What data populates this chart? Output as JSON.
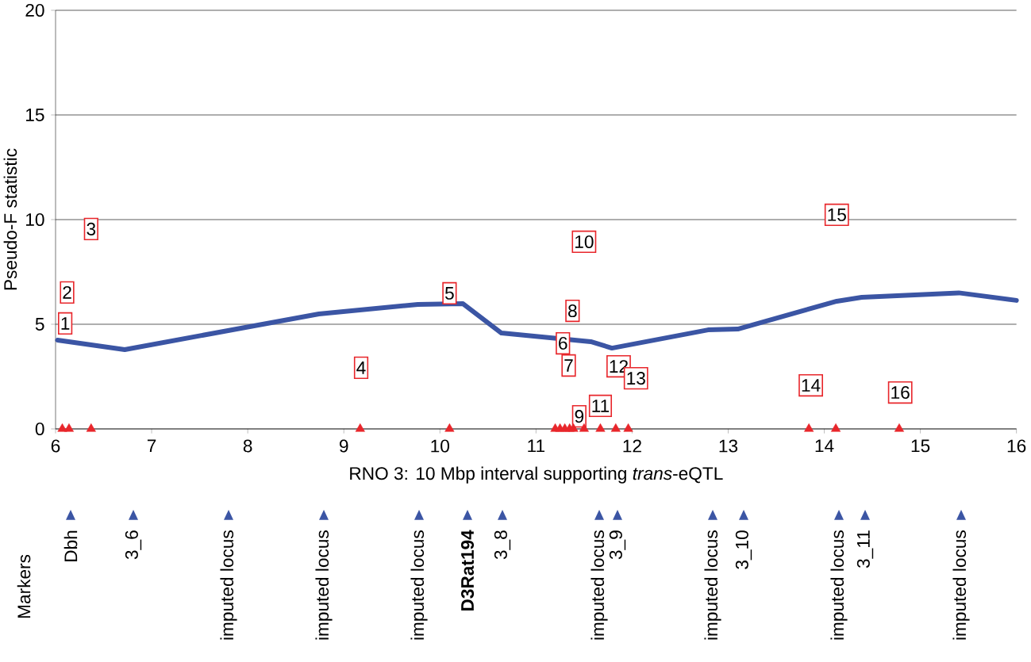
{
  "chart_data": {
    "type": "line",
    "xlabel": "RNO 3: 10 Mbp interval supporting *trans*-eQTL",
    "ylabel": "Pseudo-F statistic",
    "xlim": [
      6,
      16
    ],
    "xticks": [
      6,
      7,
      8,
      9,
      10,
      11,
      12,
      13,
      14,
      15,
      16
    ],
    "ylim": [
      0,
      20
    ],
    "yticks": [
      0,
      5,
      10,
      15,
      20
    ],
    "grid": "y",
    "series": [
      {
        "color": "#3b55a4",
        "x": [
          6.02,
          6.72,
          8.74,
          9.77,
          10.24,
          10.64,
          11.57,
          11.79,
          12.79,
          13.1,
          14.13,
          14.39,
          15.4,
          16.0
        ],
        "values": [
          4.24,
          3.79,
          5.49,
          5.95,
          5.98,
          4.58,
          4.17,
          3.86,
          4.73,
          4.77,
          6.1,
          6.29,
          6.5,
          6.14
        ]
      },
      {
        "type": "scatter",
        "marker": "triangle",
        "color": "#e8262b",
        "x": [
          6.07,
          6.14,
          6.37,
          9.17,
          10.1,
          11.2,
          11.25,
          11.3,
          11.35,
          11.39,
          11.5,
          11.67,
          11.83,
          11.96,
          13.84,
          14.12,
          14.78
        ],
        "values": [
          0,
          0,
          0,
          0,
          0,
          0,
          0,
          0,
          0,
          0,
          0,
          0,
          0,
          0,
          0,
          0,
          0
        ]
      }
    ],
    "annotations": [
      {
        "text": "1",
        "x": 6.1,
        "y": 5.04
      },
      {
        "text": "2",
        "x": 6.12,
        "y": 6.52
      },
      {
        "text": "3",
        "x": 6.37,
        "y": 9.55
      },
      {
        "text": "4",
        "x": 9.18,
        "y": 2.92
      },
      {
        "text": "5",
        "x": 10.1,
        "y": 6.48
      },
      {
        "text": "6",
        "x": 11.28,
        "y": 4.09
      },
      {
        "text": "7",
        "x": 11.34,
        "y": 3.03
      },
      {
        "text": "8",
        "x": 11.38,
        "y": 5.64
      },
      {
        "text": "9",
        "x": 11.45,
        "y": 0.6
      },
      {
        "text": "10",
        "x": 11.5,
        "y": 8.94
      },
      {
        "text": "11",
        "x": 11.67,
        "y": 1.1
      },
      {
        "text": "12",
        "x": 11.86,
        "y": 2.99
      },
      {
        "text": "13",
        "x": 12.04,
        "y": 2.42
      },
      {
        "text": "14",
        "x": 13.86,
        "y": 2.08
      },
      {
        "text": "15",
        "x": 14.13,
        "y": 10.23
      },
      {
        "text": "16",
        "x": 14.79,
        "y": 1.74
      },
      "Markers",
      "Dbh",
      "3_6",
      "imputed locus",
      "imputed locus",
      "imputed locus",
      "**D3Rat194**",
      "3_8",
      "imputed locus",
      "3_9",
      "imputed locus",
      "3_10",
      "imputed locus",
      "3_11",
      "imputed locus"
    ]
  }
}
